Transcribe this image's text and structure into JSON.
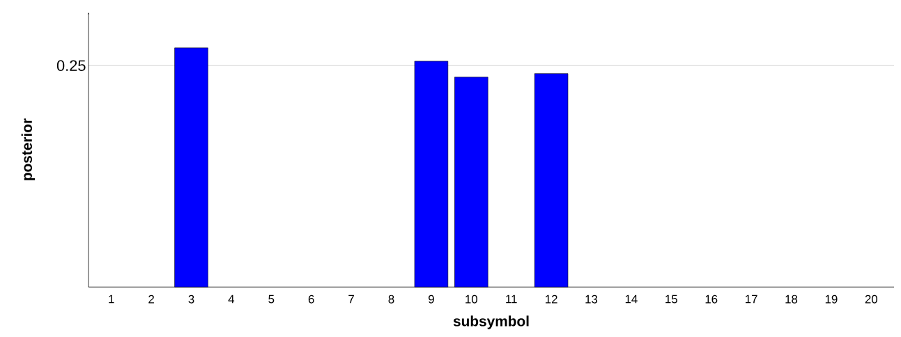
{
  "chart_data": {
    "type": "bar",
    "xlabel": "subsymbol",
    "ylabel": "posterior",
    "ylim": [
      0,
      0.31
    ],
    "yticks": [
      0.25
    ],
    "grid": "y",
    "categories": [
      "1",
      "2",
      "3",
      "4",
      "5",
      "6",
      "7",
      "8",
      "9",
      "10",
      "11",
      "12",
      "13",
      "14",
      "15",
      "16",
      "17",
      "18",
      "19",
      "20"
    ],
    "values": [
      0,
      0,
      0.27,
      0,
      0,
      0,
      0,
      0,
      0.255,
      0.237,
      0,
      0.241,
      0,
      0,
      0,
      0,
      0,
      0,
      0,
      0
    ],
    "color": "#0000ff"
  }
}
